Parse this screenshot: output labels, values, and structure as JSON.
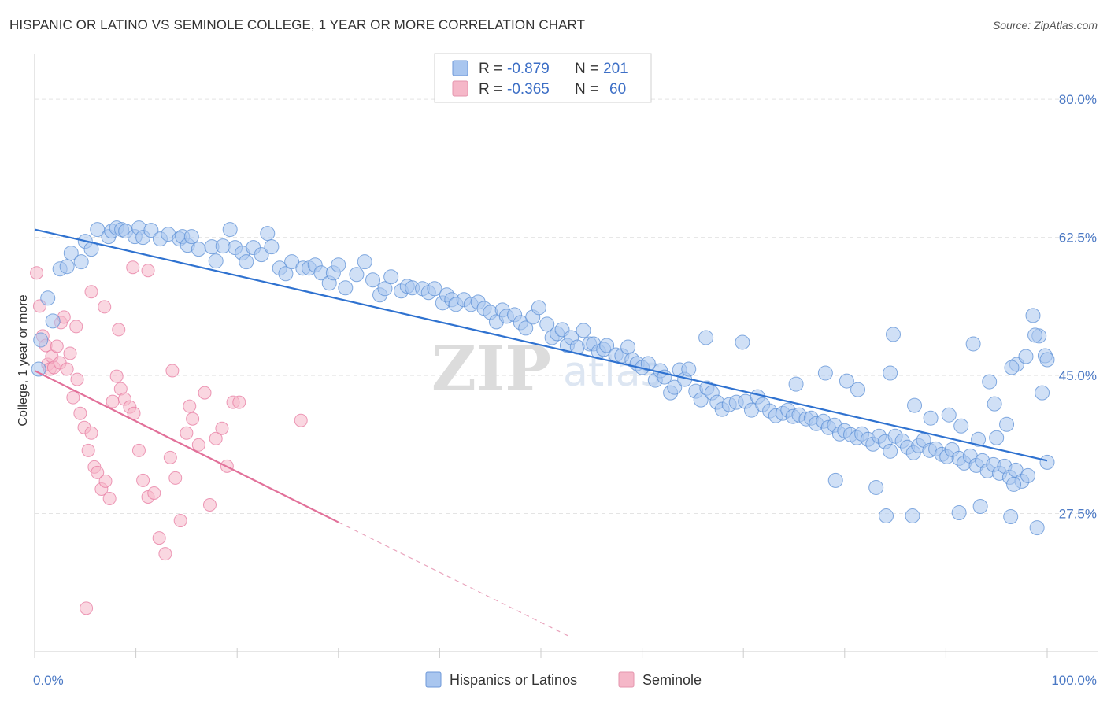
{
  "title": "HISPANIC OR LATINO VS SEMINOLE COLLEGE, 1 YEAR OR MORE CORRELATION CHART",
  "source": "Source: ZipAtlas.com",
  "watermark": {
    "main": "ZIP",
    "sub": "atlas"
  },
  "legend": {
    "rows": [
      {
        "r_label": "R =",
        "r_value": "-0.879",
        "n_label": "N =",
        "n_value": "201",
        "color": "#a9c6ef"
      },
      {
        "r_label": "R =",
        "r_value": "-0.365",
        "n_label": "N =",
        "n_value": "60",
        "color": "#f5b7c8"
      }
    ]
  },
  "bottom_legend": [
    {
      "label": "Hispanics or Latinos",
      "color": "#a9c6ef"
    },
    {
      "label": "Seminole",
      "color": "#f5b7c8"
    }
  ],
  "chart_data": {
    "type": "scatter",
    "ylabel": "College, 1 year or more",
    "xlabel": "",
    "xlim": [
      0,
      100
    ],
    "ylim": [
      10,
      85
    ],
    "x_tick_labels": [
      "0.0%",
      "100.0%"
    ],
    "y_ticks": [
      27.5,
      45.0,
      62.5,
      80.0
    ],
    "y_tick_labels": [
      "27.5%",
      "45.0%",
      "62.5%",
      "80.0%"
    ],
    "grid": true,
    "legend_position": "top-center",
    "series": [
      {
        "name": "Hispanics or Latinos",
        "color": "#5b8fd6",
        "fill": "#a9c6ef",
        "trend": {
          "x": [
            0,
            100
          ],
          "y": [
            63.5,
            34.2
          ]
        },
        "points": [
          [
            0.4,
            45.8
          ],
          [
            0.6,
            49.5
          ],
          [
            1.3,
            54.8
          ],
          [
            1.8,
            51.9
          ],
          [
            2.5,
            58.5
          ],
          [
            3.2,
            58.8
          ],
          [
            3.6,
            60.5
          ],
          [
            4.6,
            59.4
          ],
          [
            5.0,
            62.0
          ],
          [
            5.6,
            61.0
          ],
          [
            6.2,
            63.5
          ],
          [
            7.3,
            62.6
          ],
          [
            7.6,
            63.3
          ],
          [
            8.1,
            63.7
          ],
          [
            8.6,
            63.5
          ],
          [
            9.0,
            63.3
          ],
          [
            9.9,
            62.6
          ],
          [
            10.3,
            63.7
          ],
          [
            10.7,
            62.5
          ],
          [
            11.5,
            63.4
          ],
          [
            12.4,
            62.3
          ],
          [
            13.2,
            62.9
          ],
          [
            14.3,
            62.3
          ],
          [
            14.6,
            62.6
          ],
          [
            15.1,
            61.5
          ],
          [
            15.5,
            62.6
          ],
          [
            16.2,
            61.0
          ],
          [
            17.5,
            61.3
          ],
          [
            17.9,
            59.5
          ],
          [
            18.6,
            61.4
          ],
          [
            19.3,
            63.5
          ],
          [
            19.8,
            61.2
          ],
          [
            20.5,
            60.5
          ],
          [
            20.9,
            59.4
          ],
          [
            21.6,
            61.2
          ],
          [
            22.4,
            60.3
          ],
          [
            23.0,
            63.0
          ],
          [
            23.4,
            61.3
          ],
          [
            24.2,
            58.6
          ],
          [
            24.8,
            57.9
          ],
          [
            25.4,
            59.4
          ],
          [
            26.5,
            58.6
          ],
          [
            27.1,
            58.6
          ],
          [
            27.7,
            59.0
          ],
          [
            28.3,
            58.0
          ],
          [
            29.1,
            56.7
          ],
          [
            29.5,
            58.0
          ],
          [
            30.0,
            59.0
          ],
          [
            30.7,
            56.1
          ],
          [
            31.8,
            57.8
          ],
          [
            32.6,
            59.4
          ],
          [
            33.4,
            57.1
          ],
          [
            34.1,
            55.2
          ],
          [
            34.6,
            56.0
          ],
          [
            35.2,
            57.5
          ],
          [
            36.2,
            55.7
          ],
          [
            36.8,
            56.3
          ],
          [
            37.3,
            56.1
          ],
          [
            38.3,
            56.0
          ],
          [
            38.9,
            55.5
          ],
          [
            39.5,
            56.0
          ],
          [
            40.3,
            54.2
          ],
          [
            40.7,
            55.2
          ],
          [
            41.2,
            54.6
          ],
          [
            41.6,
            54.0
          ],
          [
            42.4,
            54.6
          ],
          [
            43.1,
            54.0
          ],
          [
            43.8,
            54.3
          ],
          [
            44.4,
            53.5
          ],
          [
            45.0,
            53.0
          ],
          [
            45.6,
            51.8
          ],
          [
            46.2,
            53.3
          ],
          [
            46.6,
            52.5
          ],
          [
            47.4,
            52.7
          ],
          [
            48.0,
            51.7
          ],
          [
            48.5,
            51.0
          ],
          [
            49.2,
            52.4
          ],
          [
            49.8,
            53.6
          ],
          [
            50.6,
            51.5
          ],
          [
            51.1,
            49.8
          ],
          [
            51.6,
            50.3
          ],
          [
            52.1,
            50.8
          ],
          [
            52.6,
            48.8
          ],
          [
            53.0,
            49.8
          ],
          [
            53.6,
            48.6
          ],
          [
            54.2,
            50.7
          ],
          [
            54.8,
            49.0
          ],
          [
            55.2,
            49.0
          ],
          [
            55.7,
            48.0
          ],
          [
            56.2,
            48.3
          ],
          [
            56.5,
            48.8
          ],
          [
            57.4,
            47.6
          ],
          [
            58.0,
            47.5
          ],
          [
            58.6,
            48.6
          ],
          [
            59.0,
            47.0
          ],
          [
            59.5,
            46.5
          ],
          [
            60.0,
            46.0
          ],
          [
            60.6,
            46.5
          ],
          [
            61.3,
            44.4
          ],
          [
            61.8,
            45.6
          ],
          [
            62.2,
            44.8
          ],
          [
            62.8,
            42.8
          ],
          [
            63.2,
            43.5
          ],
          [
            63.7,
            45.7
          ],
          [
            64.2,
            44.5
          ],
          [
            64.6,
            45.8
          ],
          [
            65.3,
            43.0
          ],
          [
            65.8,
            41.9
          ],
          [
            66.4,
            43.4
          ],
          [
            66.9,
            42.8
          ],
          [
            67.4,
            41.6
          ],
          [
            67.9,
            40.7
          ],
          [
            68.6,
            41.3
          ],
          [
            69.3,
            41.6
          ],
          [
            70.2,
            41.7
          ],
          [
            70.8,
            40.6
          ],
          [
            71.4,
            42.3
          ],
          [
            71.9,
            41.3
          ],
          [
            72.6,
            40.5
          ],
          [
            73.2,
            39.9
          ],
          [
            73.9,
            40.2
          ],
          [
            74.4,
            40.6
          ],
          [
            74.9,
            39.8
          ],
          [
            75.5,
            40.0
          ],
          [
            76.2,
            39.5
          ],
          [
            76.7,
            39.6
          ],
          [
            77.2,
            38.9
          ],
          [
            77.9,
            39.2
          ],
          [
            78.4,
            38.4
          ],
          [
            79.0,
            38.7
          ],
          [
            79.5,
            37.6
          ],
          [
            80.0,
            38.0
          ],
          [
            80.6,
            37.5
          ],
          [
            81.2,
            37.1
          ],
          [
            81.7,
            37.6
          ],
          [
            82.3,
            36.9
          ],
          [
            82.8,
            36.3
          ],
          [
            83.4,
            37.3
          ],
          [
            84.0,
            36.6
          ],
          [
            84.5,
            35.4
          ],
          [
            85.0,
            37.3
          ],
          [
            85.7,
            36.7
          ],
          [
            86.2,
            35.9
          ],
          [
            86.8,
            35.2
          ],
          [
            87.3,
            36.1
          ],
          [
            87.8,
            36.8
          ],
          [
            88.4,
            35.5
          ],
          [
            89.0,
            35.7
          ],
          [
            89.6,
            35.0
          ],
          [
            90.1,
            34.7
          ],
          [
            90.6,
            35.6
          ],
          [
            91.3,
            34.5
          ],
          [
            91.8,
            33.9
          ],
          [
            92.4,
            34.8
          ],
          [
            93.0,
            33.6
          ],
          [
            93.6,
            34.2
          ],
          [
            94.1,
            32.9
          ],
          [
            94.7,
            33.7
          ],
          [
            95.3,
            32.6
          ],
          [
            95.8,
            33.5
          ],
          [
            96.3,
            32.1
          ],
          [
            96.9,
            33.0
          ],
          [
            97.5,
            31.6
          ],
          [
            98.1,
            32.3
          ],
          [
            98.6,
            52.6
          ],
          [
            99.2,
            50.0
          ],
          [
            99.8,
            47.5
          ],
          [
            100.0,
            47.0
          ],
          [
            84.8,
            50.2
          ],
          [
            92.7,
            49.0
          ],
          [
            69.9,
            49.2
          ],
          [
            66.3,
            49.8
          ],
          [
            75.2,
            43.9
          ],
          [
            80.2,
            44.3
          ],
          [
            84.5,
            45.3
          ],
          [
            94.3,
            44.2
          ],
          [
            97.0,
            46.4
          ],
          [
            91.5,
            38.6
          ],
          [
            94.8,
            41.4
          ],
          [
            96.5,
            46.0
          ],
          [
            97.9,
            47.4
          ],
          [
            98.8,
            50.1
          ],
          [
            78.1,
            45.3
          ],
          [
            81.3,
            43.2
          ],
          [
            86.9,
            41.2
          ],
          [
            88.5,
            39.6
          ],
          [
            90.3,
            40.0
          ],
          [
            93.2,
            36.9
          ],
          [
            95.0,
            37.1
          ],
          [
            96.0,
            38.8
          ],
          [
            99.5,
            42.8
          ],
          [
            100.0,
            34.0
          ],
          [
            96.4,
            27.1
          ],
          [
            99.0,
            25.7
          ],
          [
            93.4,
            28.4
          ],
          [
            86.7,
            27.2
          ],
          [
            84.1,
            27.2
          ],
          [
            83.1,
            30.8
          ],
          [
            79.1,
            31.7
          ],
          [
            96.7,
            31.2
          ],
          [
            91.3,
            27.6
          ]
        ]
      },
      {
        "name": "Seminole",
        "color": "#e77aa0",
        "fill": "#f5b7c8",
        "trend": {
          "x": [
            0,
            30
          ],
          "y": [
            45.6,
            26.4
          ]
        },
        "trend_dashed": {
          "x": [
            30,
            53
          ],
          "y": [
            26.4,
            11.8
          ]
        },
        "points": [
          [
            0.2,
            58.0
          ],
          [
            0.5,
            53.8
          ],
          [
            0.8,
            50.0
          ],
          [
            1.1,
            48.8
          ],
          [
            1.3,
            46.4
          ],
          [
            1.5,
            45.8
          ],
          [
            1.7,
            47.4
          ],
          [
            1.9,
            46.0
          ],
          [
            2.2,
            48.7
          ],
          [
            2.5,
            46.6
          ],
          [
            2.6,
            51.7
          ],
          [
            2.9,
            52.4
          ],
          [
            3.2,
            45.8
          ],
          [
            3.5,
            47.8
          ],
          [
            3.8,
            42.2
          ],
          [
            4.2,
            44.5
          ],
          [
            4.5,
            40.2
          ],
          [
            4.9,
            38.4
          ],
          [
            5.3,
            35.5
          ],
          [
            5.6,
            37.7
          ],
          [
            5.9,
            33.4
          ],
          [
            6.2,
            32.7
          ],
          [
            6.6,
            30.6
          ],
          [
            7.0,
            31.6
          ],
          [
            7.4,
            29.4
          ],
          [
            7.7,
            41.7
          ],
          [
            8.1,
            44.9
          ],
          [
            8.5,
            43.3
          ],
          [
            8.9,
            42.0
          ],
          [
            9.4,
            41.0
          ],
          [
            9.8,
            40.2
          ],
          [
            10.3,
            35.5
          ],
          [
            10.7,
            31.7
          ],
          [
            11.2,
            29.6
          ],
          [
            11.8,
            30.1
          ],
          [
            12.3,
            24.4
          ],
          [
            12.9,
            22.4
          ],
          [
            13.4,
            34.6
          ],
          [
            13.9,
            32.0
          ],
          [
            14.4,
            26.6
          ],
          [
            15.0,
            37.7
          ],
          [
            15.6,
            39.5
          ],
          [
            16.2,
            36.2
          ],
          [
            16.8,
            42.8
          ],
          [
            17.3,
            28.6
          ],
          [
            17.9,
            37.0
          ],
          [
            18.5,
            38.3
          ],
          [
            19.0,
            33.5
          ],
          [
            19.6,
            41.6
          ],
          [
            20.2,
            41.6
          ],
          [
            4.1,
            51.2
          ],
          [
            5.6,
            55.6
          ],
          [
            6.9,
            53.7
          ],
          [
            8.3,
            50.8
          ],
          [
            9.7,
            58.7
          ],
          [
            11.2,
            58.3
          ],
          [
            13.6,
            45.6
          ],
          [
            15.3,
            41.1
          ],
          [
            26.3,
            39.3
          ],
          [
            5.1,
            15.5
          ]
        ]
      }
    ]
  }
}
